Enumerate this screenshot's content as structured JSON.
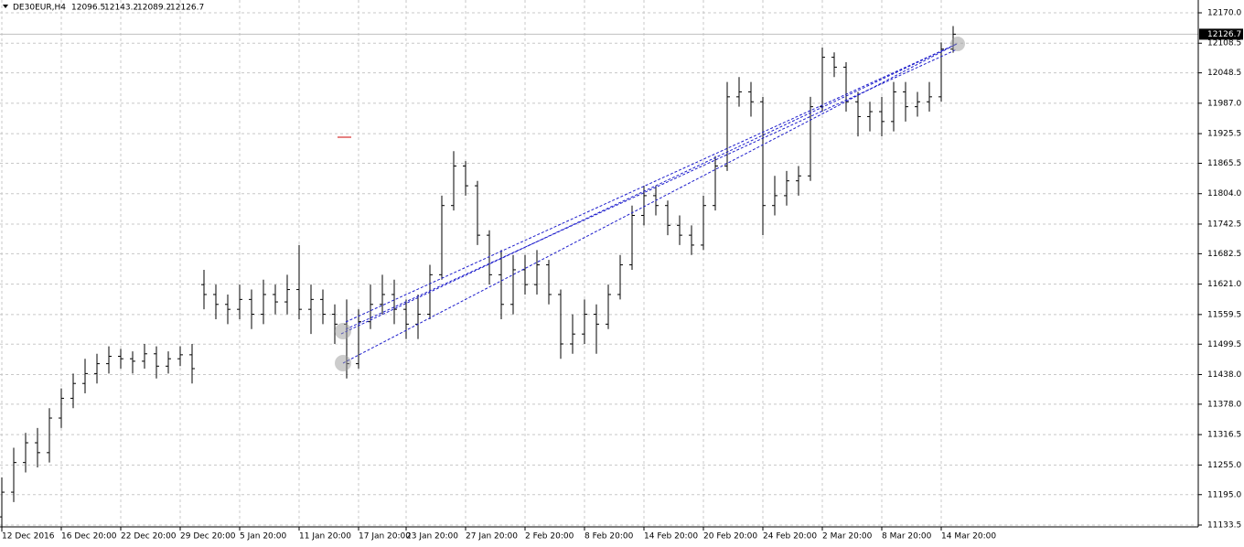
{
  "chart_data": {
    "type": "ohlc",
    "symbol": "DE30EUR,H4",
    "header_open": 12096.5,
    "header_high": 12143.2,
    "header_low": 12089.2,
    "header_close": 12126.7,
    "current_price": 12126.7,
    "categories": [
      "12 Dec 2016",
      null,
      null,
      null,
      null,
      "16 Dec 20:00",
      null,
      null,
      null,
      null,
      "22 Dec 20:00",
      null,
      null,
      null,
      null,
      "29 Dec 20:00",
      null,
      null,
      null,
      null,
      "5 Jan 20:00",
      null,
      null,
      null,
      null,
      "11 Jan 20:00",
      null,
      null,
      null,
      null,
      "17 Jan 20:00",
      null,
      null,
      null,
      "23 Jan 20:00",
      null,
      null,
      null,
      null,
      "27 Jan 20:00",
      null,
      null,
      null,
      null,
      "2 Feb 20:00",
      null,
      null,
      null,
      null,
      "8 Feb 20:00",
      null,
      null,
      null,
      null,
      "14 Feb 20:00",
      null,
      null,
      null,
      null,
      "20 Feb 20:00",
      null,
      null,
      null,
      null,
      "24 Feb 20:00",
      null,
      null,
      null,
      null,
      "2 Mar 20:00",
      null,
      null,
      null,
      null,
      "8 Mar 20:00",
      null,
      null,
      null,
      null,
      "14 Mar 20:00",
      null
    ],
    "open": [
      11150,
      11200,
      11260,
      11300,
      11280,
      11350,
      11390,
      11420,
      11440,
      11460,
      11475,
      11470,
      11465,
      11480,
      11455,
      11470,
      11478,
      11620,
      11600,
      11580,
      11570,
      11590,
      11560,
      11600,
      11585,
      11610,
      11570,
      11590,
      11560,
      11540,
      11460,
      11545,
      11580,
      11600,
      11570,
      11540,
      11560,
      11640,
      11780,
      11860,
      11820,
      11720,
      11640,
      11580,
      11650,
      11620,
      11660,
      11600,
      11500,
      11520,
      11560,
      11540,
      11600,
      11660,
      11760,
      11800,
      11780,
      11740,
      11720,
      11700,
      11780,
      11860,
      12000,
      12010,
      11990,
      11780,
      11800,
      11830,
      11840,
      11980,
      12080,
      12060,
      11990,
      11960,
      11970,
      11950,
      12010,
      11980,
      11990,
      12000,
      12096.5
    ],
    "high": [
      11230,
      11290,
      11320,
      11330,
      11370,
      11410,
      11440,
      11470,
      11480,
      11495,
      11490,
      11485,
      11500,
      11495,
      11485,
      11495,
      11500,
      11650,
      11620,
      11600,
      11620,
      11610,
      11630,
      11620,
      11640,
      11700,
      11620,
      11610,
      11580,
      11590,
      11570,
      11620,
      11640,
      11630,
      11590,
      11600,
      11660,
      11800,
      11890,
      11870,
      11830,
      11730,
      11690,
      11680,
      11680,
      11690,
      11670,
      11610,
      11560,
      11590,
      11580,
      11620,
      11680,
      11780,
      11820,
      11820,
      11790,
      11760,
      11740,
      11800,
      11880,
      12030,
      12040,
      12030,
      12000,
      11840,
      11850,
      11860,
      12000,
      12100,
      12090,
      12070,
      12010,
      11990,
      12000,
      12030,
      12030,
      12010,
      12030,
      12110,
      12143.2
    ],
    "low": [
      11120,
      11180,
      11240,
      11250,
      11260,
      11330,
      11370,
      11400,
      11420,
      11440,
      11450,
      11440,
      11450,
      11430,
      11440,
      11455,
      11420,
      11570,
      11550,
      11540,
      11550,
      11530,
      11540,
      11560,
      11560,
      11550,
      11520,
      11540,
      11500,
      11430,
      11450,
      11530,
      11560,
      11540,
      11510,
      11510,
      11550,
      11630,
      11770,
      11800,
      11700,
      11620,
      11550,
      11560,
      11600,
      11600,
      11580,
      11470,
      11480,
      11500,
      11480,
      11530,
      11590,
      11650,
      11740,
      11760,
      11720,
      11700,
      11680,
      11690,
      11770,
      11850,
      11980,
      11960,
      11720,
      11760,
      11780,
      11800,
      11830,
      11970,
      12040,
      11970,
      11920,
      11930,
      11920,
      11930,
      11950,
      11960,
      11970,
      11990,
      12089.2
    ],
    "close": [
      11200,
      11260,
      11300,
      11280,
      11350,
      11390,
      11420,
      11440,
      11460,
      11475,
      11470,
      11465,
      11480,
      11455,
      11470,
      11478,
      11450,
      11600,
      11580,
      11570,
      11590,
      11560,
      11600,
      11585,
      11610,
      11570,
      11590,
      11560,
      11540,
      11460,
      11545,
      11580,
      11600,
      11570,
      11540,
      11560,
      11640,
      11780,
      11860,
      11820,
      11720,
      11640,
      11580,
      11650,
      11620,
      11660,
      11600,
      11500,
      11520,
      11560,
      11540,
      11600,
      11660,
      11760,
      11800,
      11780,
      11740,
      11720,
      11700,
      11780,
      11860,
      12000,
      12010,
      11990,
      11780,
      11800,
      11830,
      11840,
      11980,
      12080,
      12060,
      11990,
      11960,
      11970,
      11950,
      12010,
      11980,
      11990,
      12000,
      12096.5,
      12126.7
    ],
    "color": "#000000",
    "ylim": [
      11129.8,
      12195.9
    ],
    "yticks": [
      {
        "value": 12170,
        "label": "12170.0"
      },
      12108.5,
      12048.5,
      {
        "value": 11987,
        "label": "11987.0"
      },
      11925.5,
      11865.5,
      {
        "value": 11804,
        "label": "11804.0"
      },
      11742.5,
      11682.5,
      {
        "value": 11621,
        "label": "11621.0"
      },
      11559.5,
      11499.5,
      {
        "value": 11438,
        "label": "11438.0"
      },
      {
        "value": 11378,
        "label": "11378.0"
      },
      11316.5,
      {
        "value": 11255,
        "label": "11255.0"
      },
      {
        "value": 11195,
        "label": "11195.0"
      },
      11133.5
    ],
    "grid": true
  }
}
